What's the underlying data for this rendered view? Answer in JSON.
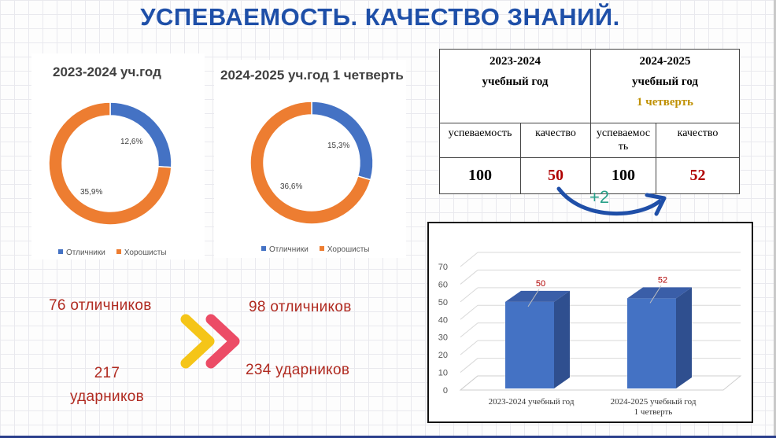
{
  "title": "УСПЕВАЕМОСТЬ. КАЧЕСТВО ЗНАНИЙ.",
  "donut_left": {
    "title": "2023-2024 уч.год",
    "label_blue": "12,6%",
    "label_orange": "35,9%"
  },
  "donut_right": {
    "title": "2024-2025 уч.год 1 четверть",
    "label_blue": "15,3%",
    "label_orange": "36,6%"
  },
  "legend": {
    "excellent": "Отличники",
    "good": "Хорошисты"
  },
  "counts": {
    "left_excellent": "76 отличников",
    "left_good_line1": "217",
    "left_good_line2": "ударников",
    "right_excellent": "98 отличников",
    "right_good": "234  ударников"
  },
  "table": {
    "col1_line1": "2023-2024",
    "col1_line2": "учебный год",
    "col2_line1": "2024-2025",
    "col2_line2": "учебный год",
    "col2_line3": "1 четверть",
    "h_perf": "успеваемость",
    "h_quality": "качество",
    "h_perf2_line1": "успеваемос",
    "h_perf2_line2": "ть",
    "h_quality2": "качество",
    "v1": "100",
    "v2": "50",
    "v3": "100",
    "v4": "52"
  },
  "diff": "+2",
  "colors": {
    "blue": "#4472c4",
    "orange": "#ed7d31",
    "bar": "#4472c4",
    "bar_side": "#2f4f8f",
    "bar_top": "#3a5ea8"
  },
  "chart_data": [
    {
      "type": "pie",
      "title": "2023-2024 уч.год",
      "labels": [
        "Отличники",
        "Хорошисты"
      ],
      "values": [
        12.6,
        35.9
      ],
      "data_labels": [
        "12,6%",
        "35,9%"
      ],
      "legend": "bottom"
    },
    {
      "type": "pie",
      "title": "2024-2025 уч.год 1 четверть",
      "labels": [
        "Отличники",
        "Хорошисты"
      ],
      "values": [
        15.3,
        36.6
      ],
      "data_labels": [
        "15,3%",
        "36,6%"
      ],
      "legend": "bottom"
    },
    {
      "type": "bar",
      "categories": [
        [
          "2023-2024  учебный год"
        ],
        [
          "2024-2025 учебный год",
          "1 четверть"
        ]
      ],
      "values": [
        50,
        52
      ],
      "data_labels": [
        "50",
        "52"
      ],
      "ylim": [
        0,
        70
      ],
      "yticks": [
        0,
        10,
        20,
        30,
        40,
        50,
        60,
        70
      ],
      "grid": true
    }
  ]
}
